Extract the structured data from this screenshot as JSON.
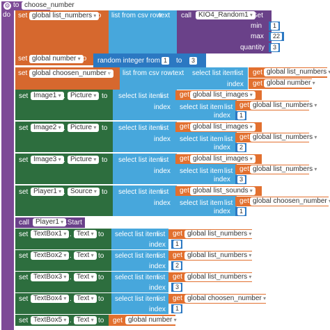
{
  "procedure": {
    "to": "to",
    "name": "choose_number",
    "do": "do"
  },
  "kw": {
    "set": "set",
    "to": "to",
    "get": "get",
    "call": "call",
    "index": "index",
    "list": "list",
    "text": "text",
    "dot": "."
  },
  "list_from_csv": "list from csv row",
  "select_list_item": "select list item",
  "random_int": "random integer from",
  "random_to": "to",
  "kio": {
    "component": "KIO4_Random1",
    "method": ".Get",
    "min": "min",
    "max": "max",
    "quantity": "quantity",
    "min_val": "1",
    "max_val": "22",
    "qty_val": "3"
  },
  "rows": {
    "r1": {
      "var": "global list_numbers"
    },
    "r2": {
      "var": "global number",
      "from": "1",
      "to": "3"
    },
    "r3": {
      "var": "global choosen_number",
      "g1": "global list_numbers",
      "g2": "global number"
    },
    "r4": {
      "comp": "Image1",
      "prop": "Picture",
      "g1": "global list_images",
      "g2": "global list_numbers",
      "idx": "1"
    },
    "r5": {
      "comp": "Image2",
      "prop": "Picture",
      "g1": "global list_images",
      "g2": "global list_numbers",
      "idx": "2"
    },
    "r6": {
      "comp": "Image3",
      "prop": "Picture",
      "g1": "global list_images",
      "g2": "global list_numbers",
      "idx": "3"
    },
    "r7": {
      "comp": "Player1",
      "prop": "Source",
      "g1": "global list_sounds",
      "g2": "global choosen_number",
      "idx": "1"
    },
    "r8": {
      "comp": "Player1",
      "method": ".Start"
    },
    "r9": {
      "comp": "TextBox1",
      "prop": "Text",
      "g1": "global list_numbers",
      "idx": "1"
    },
    "r10": {
      "comp": "TextBox2",
      "prop": "Text",
      "g1": "global list_numbers",
      "idx": "2"
    },
    "r11": {
      "comp": "TextBox3",
      "prop": "Text",
      "g1": "global list_numbers",
      "idx": "3"
    },
    "r12": {
      "comp": "TextBox4",
      "prop": "Text",
      "g1": "global choosen_number",
      "idx": "1"
    },
    "r13": {
      "comp": "TextBox5",
      "prop": "Text",
      "g1": "global number"
    }
  },
  "colors": {
    "procedure": "#7d4a96",
    "variable": "#d6682e",
    "lists": "#47a7dc",
    "components": "#2d6e3e",
    "math": "#2b78c2",
    "call": "#6a4189"
  }
}
